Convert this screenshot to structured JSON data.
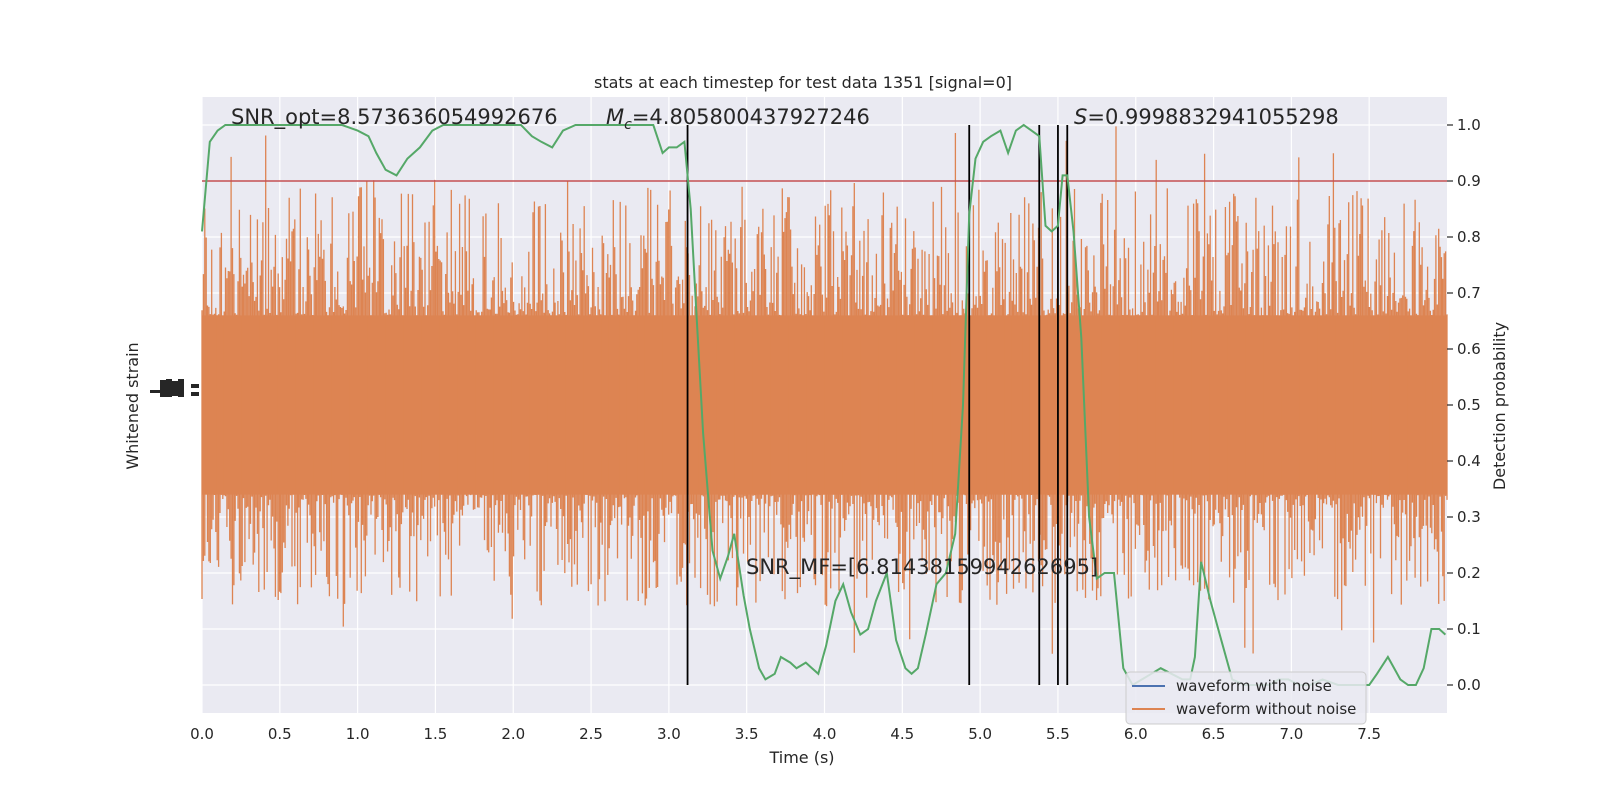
{
  "chart_data": {
    "type": "line",
    "title": "stats at each timestep for test data 1351 [signal=0]",
    "xlabel": "Time (s)",
    "ylabel_left": "Whitened strain",
    "ylabel_right": "Detection probability",
    "xlim": [
      0.0,
      8.0
    ],
    "ylim_right": [
      -0.05,
      1.05
    ],
    "x_ticks": [
      "0.0",
      "0.5",
      "1.0",
      "1.5",
      "2.0",
      "2.5",
      "3.0",
      "3.5",
      "4.0",
      "4.5",
      "5.0",
      "5.5",
      "6.0",
      "6.5",
      "7.0",
      "7.5"
    ],
    "x_tick_values": [
      0.0,
      0.5,
      1.0,
      1.5,
      2.0,
      2.5,
      3.0,
      3.5,
      4.0,
      4.5,
      5.0,
      5.5,
      6.0,
      6.5,
      7.0,
      7.5
    ],
    "y_right_ticks": [
      "0.0",
      "0.1",
      "0.2",
      "0.3",
      "0.4",
      "0.5",
      "0.6",
      "0.7",
      "0.8",
      "0.9",
      "1.0"
    ],
    "y_right_tick_values": [
      0.0,
      0.1,
      0.2,
      0.3,
      0.4,
      0.5,
      0.6,
      0.7,
      0.8,
      0.9,
      1.0
    ],
    "grid": true,
    "legend_position": "lower-right",
    "threshold": 0.9,
    "vertical_lines": [
      3.12,
      4.93,
      5.38,
      5.5,
      5.56
    ],
    "annotations": {
      "snr_opt": "SNR_opt=8.573636054992676",
      "mc_symbol": "M",
      "mc_sub": "c",
      "mc_value": "=4.805800437927246",
      "s_symbol": "S",
      "s_value": "=0.9998832941055298",
      "snr_mf": "SNR_MF=[6.814381599426​2695]"
    },
    "series": [
      {
        "name": "waveform with noise",
        "color": "#4c72b0"
      },
      {
        "name": "waveform without noise",
        "color": "#dd8452"
      },
      {
        "color": "#55a868",
        "x": [
          0.0,
          0.05,
          0.1,
          0.15,
          0.2,
          0.3,
          0.4,
          0.5,
          0.6,
          0.7,
          0.8,
          0.9,
          1.0,
          1.07,
          1.12,
          1.18,
          1.25,
          1.32,
          1.4,
          1.48,
          1.55,
          1.65,
          1.75,
          1.85,
          1.95,
          2.0,
          2.05,
          2.12,
          2.18,
          2.25,
          2.32,
          2.4,
          2.5,
          2.6,
          2.7,
          2.8,
          2.9,
          2.96,
          3.0,
          3.05,
          3.1,
          3.14,
          3.17,
          3.22,
          3.28,
          3.33,
          3.38,
          3.42,
          3.48,
          3.52,
          3.58,
          3.62,
          3.68,
          3.72,
          3.78,
          3.82,
          3.88,
          3.92,
          3.96,
          4.01,
          4.07,
          4.12,
          4.17,
          4.23,
          4.28,
          4.33,
          4.4,
          4.46,
          4.52,
          4.56,
          4.6,
          4.65,
          4.72,
          4.78,
          4.84,
          4.89,
          4.93,
          4.97,
          5.02,
          5.07,
          5.13,
          5.18,
          5.23,
          5.28,
          5.33,
          5.38,
          5.42,
          5.46,
          5.5,
          5.53,
          5.56,
          5.6,
          5.65,
          5.7,
          5.75,
          5.8,
          5.86,
          5.92,
          5.98,
          6.04,
          6.1,
          6.16,
          6.23,
          6.3,
          6.35,
          6.38,
          6.42,
          6.48,
          6.55,
          6.62,
          6.7,
          6.78,
          6.86,
          6.92,
          6.98,
          7.05,
          7.12,
          7.2,
          7.3,
          7.38,
          7.45,
          7.5,
          7.55,
          7.62,
          7.7,
          7.75,
          7.8,
          7.85,
          7.9,
          7.95,
          7.99
        ],
        "y": [
          0.81,
          0.97,
          0.99,
          1.0,
          1.0,
          1.0,
          1.0,
          1.0,
          1.0,
          1.0,
          1.0,
          1.0,
          0.99,
          0.98,
          0.95,
          0.92,
          0.91,
          0.94,
          0.96,
          0.99,
          1.0,
          1.0,
          1.0,
          1.0,
          1.0,
          1.0,
          1.0,
          0.98,
          0.97,
          0.96,
          0.99,
          1.0,
          1.0,
          1.0,
          1.0,
          1.0,
          1.0,
          0.95,
          0.96,
          0.96,
          0.97,
          0.85,
          0.7,
          0.45,
          0.24,
          0.19,
          0.23,
          0.27,
          0.16,
          0.1,
          0.03,
          0.01,
          0.02,
          0.05,
          0.04,
          0.03,
          0.04,
          0.03,
          0.02,
          0.07,
          0.15,
          0.18,
          0.13,
          0.09,
          0.1,
          0.15,
          0.2,
          0.08,
          0.03,
          0.02,
          0.03,
          0.09,
          0.18,
          0.2,
          0.27,
          0.5,
          0.84,
          0.94,
          0.97,
          0.98,
          0.99,
          0.95,
          0.99,
          1.0,
          0.99,
          0.98,
          0.82,
          0.81,
          0.82,
          0.91,
          0.91,
          0.81,
          0.62,
          0.3,
          0.19,
          0.2,
          0.2,
          0.03,
          0.0,
          0.01,
          0.02,
          0.03,
          0.02,
          0.01,
          0.01,
          0.05,
          0.22,
          0.15,
          0.08,
          0.01,
          0.0,
          0.0,
          0.0,
          0.01,
          0.01,
          0.0,
          0.0,
          0.01,
          0.0,
          0.0,
          0.0,
          0.0,
          0.02,
          0.05,
          0.01,
          0.0,
          0.0,
          0.03,
          0.1,
          0.1,
          0.09
        ]
      }
    ]
  }
}
